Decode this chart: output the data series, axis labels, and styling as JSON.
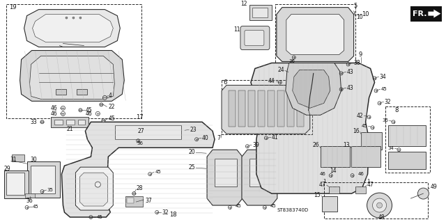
{
  "fig_width": 6.4,
  "fig_height": 3.19,
  "dpi": 100,
  "background_color": "#ffffff",
  "line_color": "#2a2a2a",
  "text_color": "#111111",
  "watermark": "ST8383740D",
  "direction_label": "FR."
}
